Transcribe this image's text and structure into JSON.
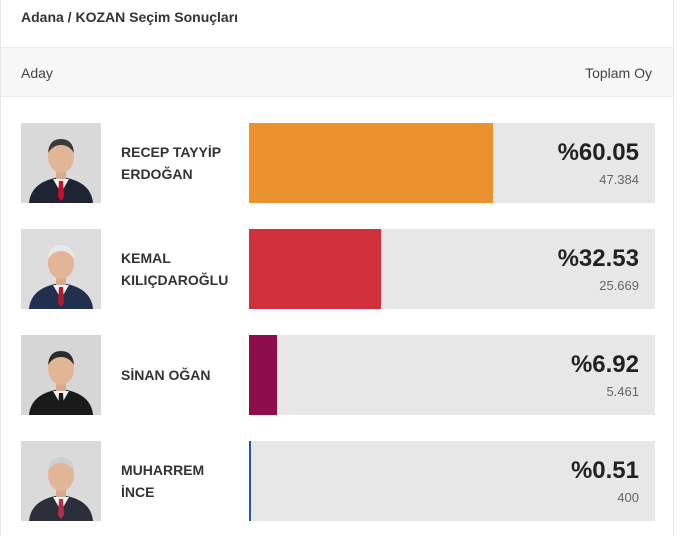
{
  "header": {
    "title": "Adana / KOZAN Seçim Sonuçları"
  },
  "columns": {
    "candidate": "Aday",
    "total_votes": "Toplam Oy"
  },
  "candidates": [
    {
      "name_line1": "RECEP TAYYİP",
      "name_line2": "ERDOĞAN",
      "percent": "%60.05",
      "votes": "47.384",
      "share": 60.05,
      "color": "#EB922E",
      "photo_bg": "#d9d9d9",
      "suit": "#1e2433",
      "tie": "#c8102e",
      "hair": "#3a3a3a"
    },
    {
      "name_line1": "KEMAL",
      "name_line2": "KILIÇDAROĞLU",
      "percent": "%32.53",
      "votes": "25.669",
      "share": 32.53,
      "color": "#D1313C",
      "photo_bg": "#dcdcdc",
      "suit": "#22304f",
      "tie": "#b01c2e",
      "hair": "#e8e8e8"
    },
    {
      "name_line1": "SİNAN OĞAN",
      "name_line2": "",
      "percent": "%6.92",
      "votes": "5.461",
      "share": 6.92,
      "color": "#8D0D4B",
      "photo_bg": "#d6d6d6",
      "suit": "#1a1a1a",
      "tie": "#1a1a1a",
      "hair": "#2c2c2c"
    },
    {
      "name_line1": "MUHARREM",
      "name_line2": "İNCE",
      "percent": "%0.51",
      "votes": "400",
      "share": 0.51,
      "color": "#1F5A9E",
      "photo_bg": "#dadada",
      "suit": "#2a2f3a",
      "tie": "#b0304a",
      "hair": "#cfcfcf"
    }
  ]
}
